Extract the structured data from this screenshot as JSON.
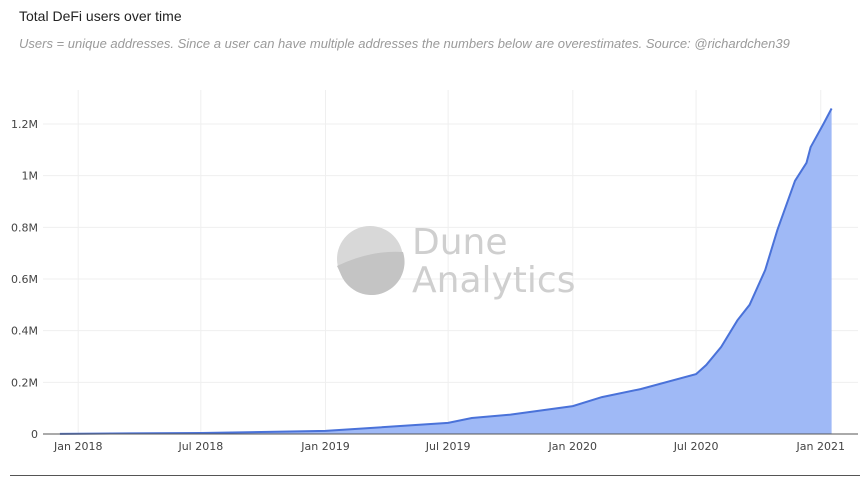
{
  "chart_data": {
    "type": "area",
    "title": "Total DeFi users over time",
    "subtitle": "Users = unique addresses. Since a user can have multiple addresses the numbers below are overestimates. Source: @richardchen39",
    "xlabel": "",
    "ylabel": "",
    "x_ticks": [
      "Jan 2018",
      "Jul 2018",
      "Jan 2019",
      "Jul 2019",
      "Jan 2020",
      "Jul 2020",
      "Jan 2021"
    ],
    "x_tick_dates": [
      "2018-01-01",
      "2018-07-01",
      "2019-01-01",
      "2019-07-01",
      "2020-01-01",
      "2020-07-01",
      "2021-01-01"
    ],
    "y_ticks": [
      {
        "value": 0,
        "label": "0"
      },
      {
        "value": 0.2,
        "label": "0.2M"
      },
      {
        "value": 0.4,
        "label": "0.4M"
      },
      {
        "value": 0.6,
        "label": "0.6M"
      },
      {
        "value": 0.8,
        "label": "0.8M"
      },
      {
        "value": 1.0,
        "label": "1M"
      },
      {
        "value": 1.2,
        "label": "1.2M"
      }
    ],
    "y_unit": "millions",
    "ylim": [
      0,
      1.3
    ],
    "xlim": [
      "2017-11-10",
      "2021-02-25"
    ],
    "grid": true,
    "line_color": "#4a72d9",
    "fill_color": "#9ab5f5",
    "series": [
      {
        "x": [
          "2017-12-05",
          "2018-01-01",
          "2018-07-01",
          "2019-01-01",
          "2019-07-01",
          "2019-08-05",
          "2019-10-01",
          "2020-01-01",
          "2020-02-13",
          "2020-04-10",
          "2020-07-01",
          "2020-07-16",
          "2020-08-07",
          "2020-08-31",
          "2020-09-18",
          "2020-10-11",
          "2020-10-29",
          "2020-11-24",
          "2020-12-11",
          "2020-12-17",
          "2021-01-05",
          "2021-01-17"
        ],
        "y": [
          0.0005,
          0.001,
          0.004,
          0.012,
          0.043,
          0.062,
          0.075,
          0.108,
          0.143,
          0.174,
          0.232,
          0.267,
          0.337,
          0.44,
          0.5,
          0.635,
          0.79,
          0.98,
          1.05,
          1.11,
          1.2,
          1.26
        ]
      }
    ],
    "watermark": "Dune Analytics"
  }
}
